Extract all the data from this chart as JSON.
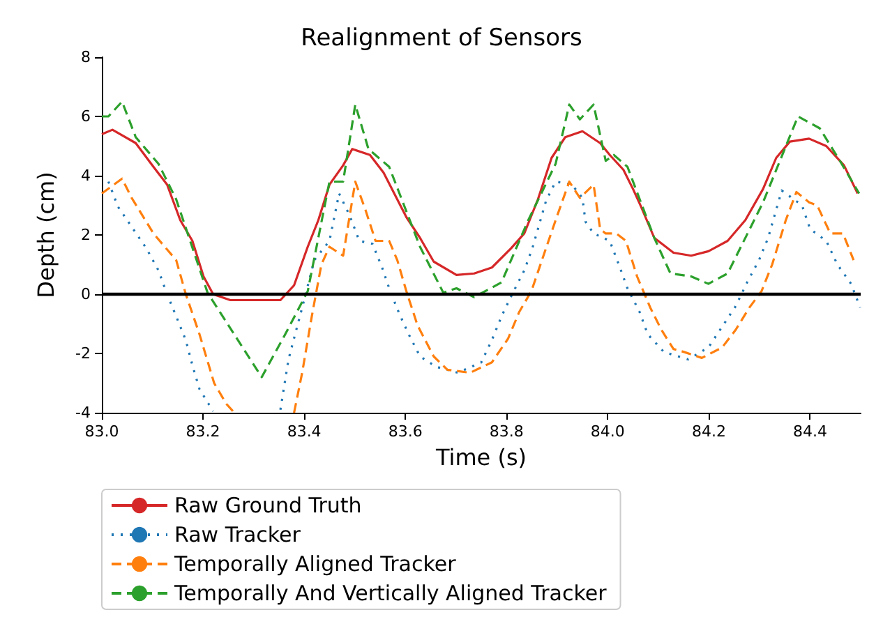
{
  "chart_data": {
    "type": "line",
    "title": "Realignment of Sensors",
    "xlabel": "Time (s)",
    "ylabel": "Depth (cm)",
    "xlim": [
      83.0,
      84.5
    ],
    "xticks": [
      {
        "value": 83.0,
        "label": "83.0"
      },
      {
        "value": 83.2,
        "label": "83.2"
      },
      {
        "value": 83.4,
        "label": "83.4"
      },
      {
        "value": 83.6,
        "label": "83.6"
      },
      {
        "value": 83.8,
        "label": "83.8"
      },
      {
        "value": 84.0,
        "label": "84.0"
      },
      {
        "value": 84.2,
        "label": "84.2"
      },
      {
        "value": 84.4,
        "label": "84.4"
      }
    ],
    "ylim": [
      -4,
      8
    ],
    "yticks": [
      -4,
      -2,
      0,
      2,
      4,
      6,
      8
    ],
    "grid": false,
    "legend": "bottom",
    "marker": "none",
    "ref_lines": [
      {
        "axis": "y",
        "value": 0,
        "label": null,
        "color": "#000000",
        "line_style": "solid"
      }
    ],
    "series": [
      {
        "name": "Raw Ground Truth",
        "color": "#d62728",
        "line_style": "solid",
        "x": [
          83.0,
          83.021,
          83.067,
          83.102,
          83.129,
          83.155,
          83.179,
          83.201,
          83.22,
          83.254,
          83.3,
          83.353,
          83.38,
          83.407,
          83.428,
          83.45,
          83.477,
          83.495,
          83.53,
          83.557,
          83.584,
          83.602,
          83.629,
          83.656,
          83.701,
          83.736,
          83.771,
          83.809,
          83.835,
          83.862,
          83.889,
          83.916,
          83.95,
          83.985,
          84.004,
          84.031,
          84.05,
          84.066,
          84.092,
          84.13,
          84.165,
          84.199,
          84.237,
          84.272,
          84.307,
          84.333,
          84.36,
          84.398,
          84.432,
          84.467,
          84.494
        ],
        "values": [
          5.4,
          5.55,
          5.1,
          4.3,
          3.7,
          2.5,
          1.8,
          0.6,
          0,
          -0.2,
          -0.2,
          -0.2,
          0.3,
          1.6,
          2.5,
          3.7,
          4.35,
          4.9,
          4.7,
          4.1,
          3.2,
          2.6,
          1.9,
          1.1,
          0.65,
          0.7,
          0.9,
          1.55,
          2.05,
          3.2,
          4.6,
          5.3,
          5.5,
          5.1,
          4.7,
          4.2,
          3.55,
          2.95,
          1.9,
          1.4,
          1.3,
          1.45,
          1.8,
          2.5,
          3.55,
          4.6,
          5.15,
          5.25,
          5.0,
          4.35,
          3.4
        ]
      },
      {
        "name": "Raw Tracker",
        "color": "#1f77b4",
        "line_style": "dotted",
        "x": [
          83.013,
          83.032,
          83.062,
          83.088,
          83.112,
          83.129,
          83.147,
          83.166,
          83.179,
          83.193,
          83.22,
          83.3,
          83.353,
          83.369,
          83.396,
          83.42,
          83.45,
          83.469,
          83.49,
          83.509,
          83.535,
          83.554,
          83.57,
          83.589,
          83.608,
          83.629,
          83.661,
          83.704,
          83.75,
          83.771,
          83.79,
          83.811,
          83.835,
          83.851,
          83.878,
          83.897,
          83.929,
          83.95,
          83.956,
          83.972,
          84.004,
          84.023,
          84.039,
          84.063,
          84.079,
          84.111,
          84.159,
          84.199,
          84.226,
          84.253,
          84.277,
          84.299,
          84.317,
          84.344,
          84.384,
          84.4,
          84.432,
          84.454,
          84.481,
          84.499
        ],
        "values": [
          3.8,
          2.95,
          2.2,
          1.55,
          0.8,
          0,
          -0.75,
          -1.55,
          -2.4,
          -3.2,
          -3.95,
          null,
          -3.9,
          -2.2,
          -0.45,
          1.15,
          1.8,
          3.4,
          2.65,
          1.8,
          1.7,
          0.9,
          0.1,
          -0.7,
          -1.4,
          -2.1,
          -2.45,
          -2.65,
          -2.3,
          -1.55,
          -0.75,
          0,
          0.8,
          1.55,
          3.15,
          3.8,
          3.7,
          3.25,
          2.45,
          2.05,
          1.8,
          0.95,
          0.2,
          -0.6,
          -1.35,
          -1.95,
          -2.2,
          -1.8,
          -1.1,
          -0.4,
          0.45,
          1.15,
          1.9,
          3.5,
          3.0,
          2.2,
          1.8,
          1.0,
          0.35,
          -0.45
        ]
      },
      {
        "name": "Temporally Aligned Tracker",
        "color": "#ff7f0e",
        "line_style": "dashed",
        "x": [
          83.0,
          83.04,
          83.059,
          83.102,
          83.147,
          83.166,
          83.193,
          83.222,
          83.246,
          83.262,
          83.32,
          83.38,
          83.396,
          83.415,
          83.434,
          83.45,
          83.477,
          83.501,
          83.522,
          83.541,
          83.568,
          83.584,
          83.602,
          83.624,
          83.656,
          83.683,
          83.728,
          83.771,
          83.803,
          83.825,
          83.849,
          83.87,
          83.897,
          83.924,
          83.945,
          83.972,
          83.985,
          83.996,
          84.017,
          84.036,
          84.058,
          84.084,
          84.106,
          84.13,
          84.151,
          84.186,
          84.226,
          84.253,
          84.28,
          84.304,
          84.325,
          84.352,
          84.373,
          84.398,
          84.414,
          84.44,
          84.465,
          84.486
        ],
        "values": [
          3.4,
          3.9,
          3.25,
          2.05,
          1.15,
          0,
          -1.35,
          -3.0,
          -3.7,
          -4,
          null,
          -4,
          -2.65,
          -0.75,
          1.0,
          1.6,
          1.3,
          3.8,
          2.8,
          1.8,
          1.8,
          1.15,
          0.1,
          -1.05,
          -2.1,
          -2.55,
          -2.65,
          -2.3,
          -1.5,
          -0.6,
          0.1,
          1.15,
          2.5,
          3.8,
          3.25,
          3.7,
          2.2,
          2.05,
          2.05,
          1.8,
          0.6,
          -0.45,
          -1.2,
          -1.85,
          -1.95,
          -2.15,
          -1.8,
          -1.2,
          -0.45,
          0.1,
          1.0,
          2.5,
          3.45,
          3.1,
          3.0,
          2.05,
          2.05,
          1.15
        ]
      },
      {
        "name": "Temporally And Vertically Aligned Tracker",
        "color": "#2ca02c",
        "line_style": "dashed",
        "x": [
          83.0,
          83.013,
          83.04,
          83.067,
          83.112,
          83.147,
          83.209,
          83.316,
          83.361,
          83.407,
          83.45,
          83.477,
          83.501,
          83.527,
          83.568,
          83.629,
          83.675,
          83.701,
          83.736,
          83.79,
          83.843,
          83.897,
          83.924,
          83.945,
          83.972,
          83.996,
          84.012,
          84.039,
          84.092,
          84.124,
          84.165,
          84.199,
          84.237,
          84.307,
          84.376,
          84.419,
          84.459,
          84.497
        ],
        "values": [
          6.0,
          6.0,
          6.5,
          5.3,
          4.4,
          3.2,
          0.05,
          -2.8,
          -1.4,
          0.1,
          3.8,
          3.8,
          6.4,
          4.9,
          4.3,
          1.6,
          0.05,
          0.2,
          -0.1,
          0.4,
          2.5,
          4.4,
          6.4,
          5.9,
          6.4,
          4.5,
          4.7,
          4.3,
          1.9,
          0.7,
          0.6,
          0.35,
          0.7,
          3.1,
          6.0,
          5.6,
          4.5,
          3.4
        ]
      }
    ]
  }
}
